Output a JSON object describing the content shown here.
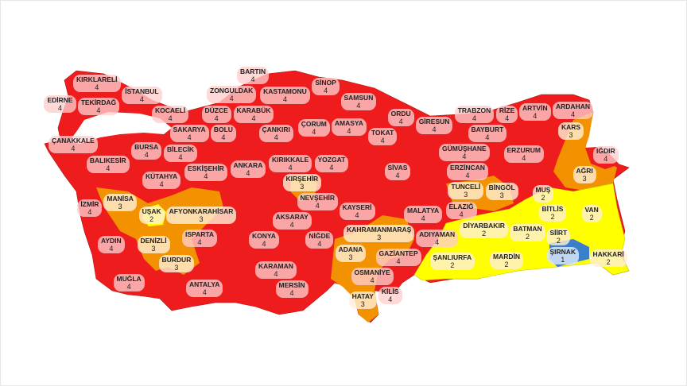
{
  "legend_colors": {
    "4": "#ee1c1c",
    "3": "#f39200",
    "2": "#ffff00",
    "1": "#3a7fc9"
  },
  "provinces": [
    {
      "name": "KIRKLARELİ",
      "level": "4"
    },
    {
      "name": "EDİRNE",
      "level": "4"
    },
    {
      "name": "TEKİRDAĞ",
      "level": "4"
    },
    {
      "name": "İSTANBUL",
      "level": "4"
    },
    {
      "name": "KOCAELİ",
      "level": "4"
    },
    {
      "name": "SAKARYA",
      "level": "4"
    },
    {
      "name": "DÜZCE",
      "level": "4"
    },
    {
      "name": "BOLU",
      "level": "4"
    },
    {
      "name": "ZONGULDAK",
      "level": "4"
    },
    {
      "name": "BARTIN",
      "level": "4"
    },
    {
      "name": "KARABÜK",
      "level": "4"
    },
    {
      "name": "KASTAMONU",
      "level": "4"
    },
    {
      "name": "SİNOP",
      "level": "4"
    },
    {
      "name": "SAMSUN",
      "level": "4"
    },
    {
      "name": "ÇANKIRI",
      "level": "4"
    },
    {
      "name": "ÇORUM",
      "level": "4"
    },
    {
      "name": "AMASYA",
      "level": "4"
    },
    {
      "name": "TOKAT",
      "level": "4"
    },
    {
      "name": "ORDU",
      "level": "4"
    },
    {
      "name": "GİRESUN",
      "level": "4"
    },
    {
      "name": "TRABZON",
      "level": "4"
    },
    {
      "name": "RİZE",
      "level": "4"
    },
    {
      "name": "ARTVİN",
      "level": "4"
    },
    {
      "name": "ARDAHAN",
      "level": "4"
    },
    {
      "name": "KARS",
      "level": "3"
    },
    {
      "name": "GÜMÜŞHANE",
      "level": "4"
    },
    {
      "name": "BAYBURT",
      "level": "4"
    },
    {
      "name": "ERZURUM",
      "level": "4"
    },
    {
      "name": "IĞDIR",
      "level": "4"
    },
    {
      "name": "AĞRI",
      "level": "3"
    },
    {
      "name": "ÇANAKKALE",
      "level": "4"
    },
    {
      "name": "BALIKESİR",
      "level": "4"
    },
    {
      "name": "BURSA",
      "level": "4"
    },
    {
      "name": "BİLECİK",
      "level": "4"
    },
    {
      "name": "ESKİŞEHİR",
      "level": "4"
    },
    {
      "name": "ANKARA",
      "level": "4"
    },
    {
      "name": "KIRIKKALE",
      "level": "4"
    },
    {
      "name": "YOZGAT",
      "level": "4"
    },
    {
      "name": "SİVAS",
      "level": "4"
    },
    {
      "name": "ERZİNCAN",
      "level": "4"
    },
    {
      "name": "KIRŞEHİR",
      "level": "3"
    },
    {
      "name": "TUNCELİ",
      "level": "3"
    },
    {
      "name": "BİNGÖL",
      "level": "3"
    },
    {
      "name": "MUŞ",
      "level": "2"
    },
    {
      "name": "BİTLİS",
      "level": "2"
    },
    {
      "name": "VAN",
      "level": "2"
    },
    {
      "name": "ELAZIĞ",
      "level": "4"
    },
    {
      "name": "NEVŞEHİR",
      "level": "4"
    },
    {
      "name": "KÜTAHYA",
      "level": "4"
    },
    {
      "name": "MANİSA",
      "level": "3"
    },
    {
      "name": "İZMİR",
      "level": "4"
    },
    {
      "name": "UŞAK",
      "level": "2"
    },
    {
      "name": "AFYONKARAHİSAR",
      "level": "3"
    },
    {
      "name": "AKSARAY",
      "level": "4"
    },
    {
      "name": "KAYSERİ",
      "level": "4"
    },
    {
      "name": "MALATYA",
      "level": "4"
    },
    {
      "name": "DİYARBAKIR",
      "level": "2"
    },
    {
      "name": "BATMAN",
      "level": "2"
    },
    {
      "name": "SİİRT",
      "level": "2"
    },
    {
      "name": "ADIYAMAN",
      "level": "4"
    },
    {
      "name": "KAHRAMANMARAŞ",
      "level": "3"
    },
    {
      "name": "NİĞDE",
      "level": "4"
    },
    {
      "name": "KONYA",
      "level": "4"
    },
    {
      "name": "ISPARTA",
      "level": "4"
    },
    {
      "name": "AYDIN",
      "level": "4"
    },
    {
      "name": "DENİZLİ",
      "level": "3"
    },
    {
      "name": "BURDUR",
      "level": "3"
    },
    {
      "name": "ADANA",
      "level": "3"
    },
    {
      "name": "OSMANİYE",
      "level": "4"
    },
    {
      "name": "ŞANLIURFA",
      "level": "2"
    },
    {
      "name": "MARDİN",
      "level": "2"
    },
    {
      "name": "ŞIRNAK",
      "level": "1"
    },
    {
      "name": "HAKKARİ",
      "level": "2"
    },
    {
      "name": "GAZİANTEP",
      "level": "4"
    },
    {
      "name": "KİLİS",
      "level": "4"
    },
    {
      "name": "MUĞLA",
      "level": "4"
    },
    {
      "name": "ANTALYA",
      "level": "4"
    },
    {
      "name": "KARAMAN",
      "level": "4"
    },
    {
      "name": "MERSİN",
      "level": "4"
    },
    {
      "name": "HATAY",
      "level": "3"
    }
  ]
}
